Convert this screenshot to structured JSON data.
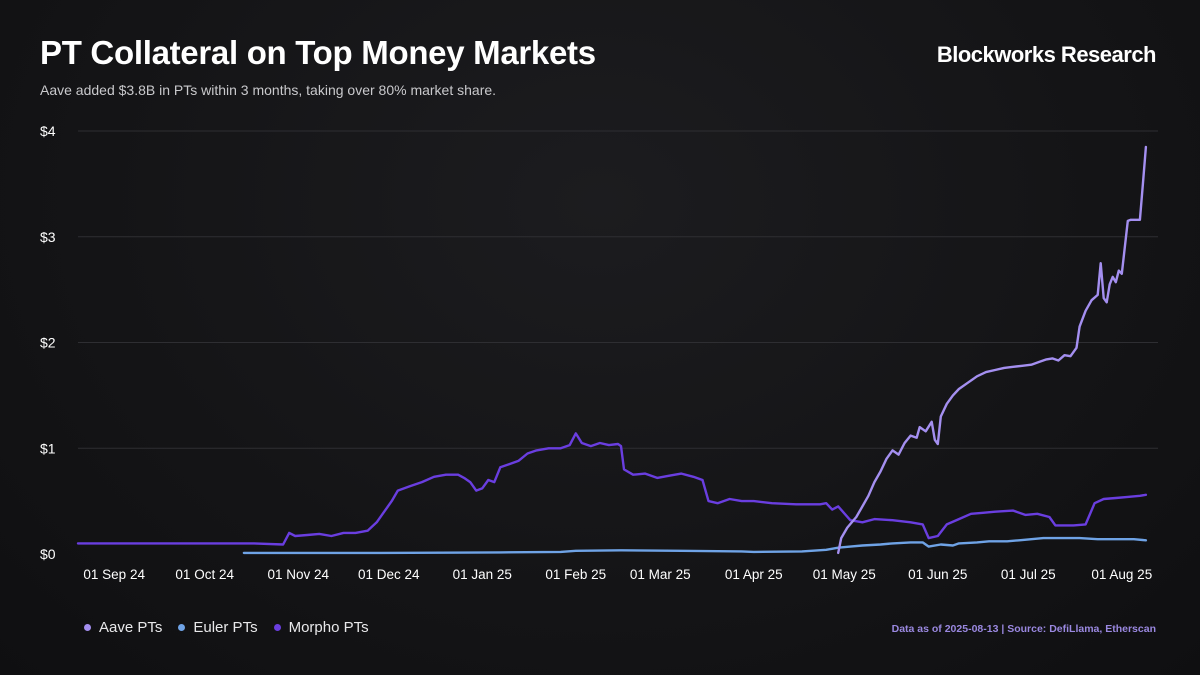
{
  "header": {
    "title": "PT Collateral on Top Money Markets",
    "subtitle": "Aave added $3.8B in PTs within 3 months, taking over 80% market share.",
    "brand": "Blockworks Research"
  },
  "footer": {
    "source": "Data as of 2025-08-13 | Source: DefiLlama, Etherscan"
  },
  "chart_data": {
    "type": "line",
    "title": "PT Collateral on Top Money Markets",
    "xlabel": "",
    "ylabel": "",
    "ylim": [
      0,
      4
    ],
    "yticks": [
      0,
      1,
      2,
      3,
      4
    ],
    "ytick_labels": [
      "$0",
      "$1",
      "$2",
      "$3",
      "$4"
    ],
    "x_unit": "days since 2024-08-20",
    "xlim": [
      0,
      358
    ],
    "xticks": [
      {
        "label": "01 Sep 24",
        "day": 12
      },
      {
        "label": "01 Oct 24",
        "day": 42
      },
      {
        "label": "01 Nov 24",
        "day": 73
      },
      {
        "label": "01 Dec 24",
        "day": 103
      },
      {
        "label": "01 Jan 25",
        "day": 134
      },
      {
        "label": "01 Feb 25",
        "day": 165
      },
      {
        "label": "01 Mar 25",
        "day": 193
      },
      {
        "label": "01 Apr 25",
        "day": 224
      },
      {
        "label": "01 May 25",
        "day": 254
      },
      {
        "label": "01 Jun 25",
        "day": 285
      },
      {
        "label": "01 Jul 25",
        "day": 315
      },
      {
        "label": "01 Aug 25",
        "day": 346
      }
    ],
    "grid": true,
    "legend_position": "bottom-left",
    "series": [
      {
        "name": "Aave PTs",
        "color": "#a48ff0",
        "points": [
          [
            252,
            0.01
          ],
          [
            253,
            0.15
          ],
          [
            255,
            0.25
          ],
          [
            258,
            0.35
          ],
          [
            260,
            0.45
          ],
          [
            262,
            0.55
          ],
          [
            264,
            0.68
          ],
          [
            266,
            0.78
          ],
          [
            268,
            0.9
          ],
          [
            270,
            0.98
          ],
          [
            272,
            0.94
          ],
          [
            274,
            1.05
          ],
          [
            276,
            1.12
          ],
          [
            278,
            1.1
          ],
          [
            279,
            1.2
          ],
          [
            281,
            1.16
          ],
          [
            283,
            1.25
          ],
          [
            284,
            1.08
          ],
          [
            285,
            1.04
          ],
          [
            286,
            1.3
          ],
          [
            288,
            1.42
          ],
          [
            290,
            1.5
          ],
          [
            292,
            1.56
          ],
          [
            295,
            1.62
          ],
          [
            298,
            1.68
          ],
          [
            301,
            1.72
          ],
          [
            304,
            1.74
          ],
          [
            307,
            1.76
          ],
          [
            310,
            1.77
          ],
          [
            313,
            1.78
          ],
          [
            316,
            1.79
          ],
          [
            319,
            1.82
          ],
          [
            321,
            1.84
          ],
          [
            323,
            1.85
          ],
          [
            325,
            1.83
          ],
          [
            327,
            1.88
          ],
          [
            329,
            1.87
          ],
          [
            331,
            1.95
          ],
          [
            332,
            2.15
          ],
          [
            334,
            2.3
          ],
          [
            336,
            2.4
          ],
          [
            338,
            2.45
          ],
          [
            339,
            2.75
          ],
          [
            340,
            2.42
          ],
          [
            341,
            2.38
          ],
          [
            342,
            2.55
          ],
          [
            343,
            2.62
          ],
          [
            344,
            2.57
          ],
          [
            345,
            2.68
          ],
          [
            346,
            2.65
          ],
          [
            347,
            2.9
          ],
          [
            348,
            3.15
          ],
          [
            349,
            3.16
          ],
          [
            351,
            3.16
          ],
          [
            352,
            3.16
          ],
          [
            353,
            3.5
          ],
          [
            354,
            3.85
          ]
        ]
      },
      {
        "name": "Euler PTs",
        "color": "#6fa3e6",
        "points": [
          [
            55,
            0.01
          ],
          [
            100,
            0.01
          ],
          [
            140,
            0.015
          ],
          [
            160,
            0.02
          ],
          [
            165,
            0.03
          ],
          [
            180,
            0.035
          ],
          [
            200,
            0.03
          ],
          [
            220,
            0.025
          ],
          [
            224,
            0.02
          ],
          [
            240,
            0.025
          ],
          [
            248,
            0.04
          ],
          [
            252,
            0.06
          ],
          [
            256,
            0.07
          ],
          [
            260,
            0.08
          ],
          [
            266,
            0.09
          ],
          [
            270,
            0.1
          ],
          [
            276,
            0.11
          ],
          [
            280,
            0.11
          ],
          [
            282,
            0.07
          ],
          [
            286,
            0.09
          ],
          [
            290,
            0.08
          ],
          [
            292,
            0.1
          ],
          [
            298,
            0.11
          ],
          [
            302,
            0.12
          ],
          [
            308,
            0.12
          ],
          [
            312,
            0.13
          ],
          [
            316,
            0.14
          ],
          [
            320,
            0.15
          ],
          [
            326,
            0.15
          ],
          [
            332,
            0.15
          ],
          [
            338,
            0.14
          ],
          [
            344,
            0.14
          ],
          [
            350,
            0.14
          ],
          [
            354,
            0.13
          ]
        ]
      },
      {
        "name": "Morpho PTs",
        "color": "#6a3ee0",
        "points": [
          [
            0,
            0.1
          ],
          [
            20,
            0.1
          ],
          [
            40,
            0.1
          ],
          [
            58,
            0.1
          ],
          [
            68,
            0.09
          ],
          [
            70,
            0.2
          ],
          [
            72,
            0.17
          ],
          [
            76,
            0.18
          ],
          [
            80,
            0.19
          ],
          [
            84,
            0.17
          ],
          [
            88,
            0.2
          ],
          [
            92,
            0.2
          ],
          [
            96,
            0.22
          ],
          [
            99,
            0.3
          ],
          [
            102,
            0.42
          ],
          [
            104,
            0.5
          ],
          [
            106,
            0.6
          ],
          [
            110,
            0.64
          ],
          [
            114,
            0.68
          ],
          [
            118,
            0.73
          ],
          [
            122,
            0.75
          ],
          [
            126,
            0.75
          ],
          [
            128,
            0.72
          ],
          [
            130,
            0.68
          ],
          [
            132,
            0.6
          ],
          [
            134,
            0.62
          ],
          [
            136,
            0.7
          ],
          [
            138,
            0.68
          ],
          [
            140,
            0.82
          ],
          [
            143,
            0.85
          ],
          [
            146,
            0.88
          ],
          [
            149,
            0.95
          ],
          [
            152,
            0.98
          ],
          [
            156,
            1.0
          ],
          [
            160,
            1.0
          ],
          [
            163,
            1.03
          ],
          [
            165,
            1.14
          ],
          [
            167,
            1.05
          ],
          [
            170,
            1.02
          ],
          [
            173,
            1.05
          ],
          [
            176,
            1.03
          ],
          [
            179,
            1.04
          ],
          [
            180,
            1.02
          ],
          [
            181,
            0.8
          ],
          [
            184,
            0.75
          ],
          [
            188,
            0.76
          ],
          [
            192,
            0.72
          ],
          [
            196,
            0.74
          ],
          [
            200,
            0.76
          ],
          [
            204,
            0.73
          ],
          [
            207,
            0.7
          ],
          [
            209,
            0.5
          ],
          [
            212,
            0.48
          ],
          [
            216,
            0.52
          ],
          [
            220,
            0.5
          ],
          [
            224,
            0.5
          ],
          [
            230,
            0.48
          ],
          [
            238,
            0.47
          ],
          [
            246,
            0.47
          ],
          [
            248,
            0.48
          ],
          [
            250,
            0.42
          ],
          [
            252,
            0.45
          ],
          [
            256,
            0.32
          ],
          [
            260,
            0.3
          ],
          [
            264,
            0.33
          ],
          [
            270,
            0.32
          ],
          [
            276,
            0.3
          ],
          [
            280,
            0.28
          ],
          [
            282,
            0.15
          ],
          [
            285,
            0.17
          ],
          [
            288,
            0.28
          ],
          [
            292,
            0.33
          ],
          [
            296,
            0.38
          ],
          [
            300,
            0.39
          ],
          [
            304,
            0.4
          ],
          [
            310,
            0.41
          ],
          [
            314,
            0.37
          ],
          [
            318,
            0.38
          ],
          [
            322,
            0.35
          ],
          [
            324,
            0.27
          ],
          [
            330,
            0.27
          ],
          [
            334,
            0.28
          ],
          [
            337,
            0.48
          ],
          [
            340,
            0.52
          ],
          [
            344,
            0.53
          ],
          [
            348,
            0.54
          ],
          [
            352,
            0.55
          ],
          [
            354,
            0.56
          ]
        ]
      }
    ]
  }
}
